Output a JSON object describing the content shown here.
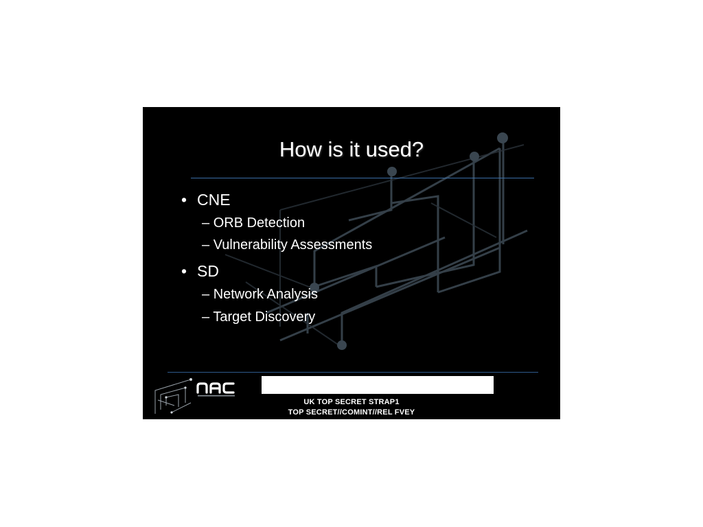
{
  "slide": {
    "title": "How is it used?",
    "bullets": [
      {
        "label": "CNE",
        "subitems": [
          "ORB Detection",
          "Vulnerability Assessments"
        ]
      },
      {
        "label": "SD",
        "subitems": [
          "Network Analysis",
          "Target Discovery"
        ]
      }
    ],
    "bullet_glyph": "•",
    "subitem_glyph": "–"
  },
  "footer": {
    "logo_icon": "nac-logo-icon",
    "classification_line1": "UK TOP SECRET STRAP1",
    "classification_line2": "TOP SECRET//COMINT//REL FVEY"
  },
  "colors": {
    "background": "#000000",
    "text": "#ffffff",
    "rule": "#3b6fa8"
  }
}
